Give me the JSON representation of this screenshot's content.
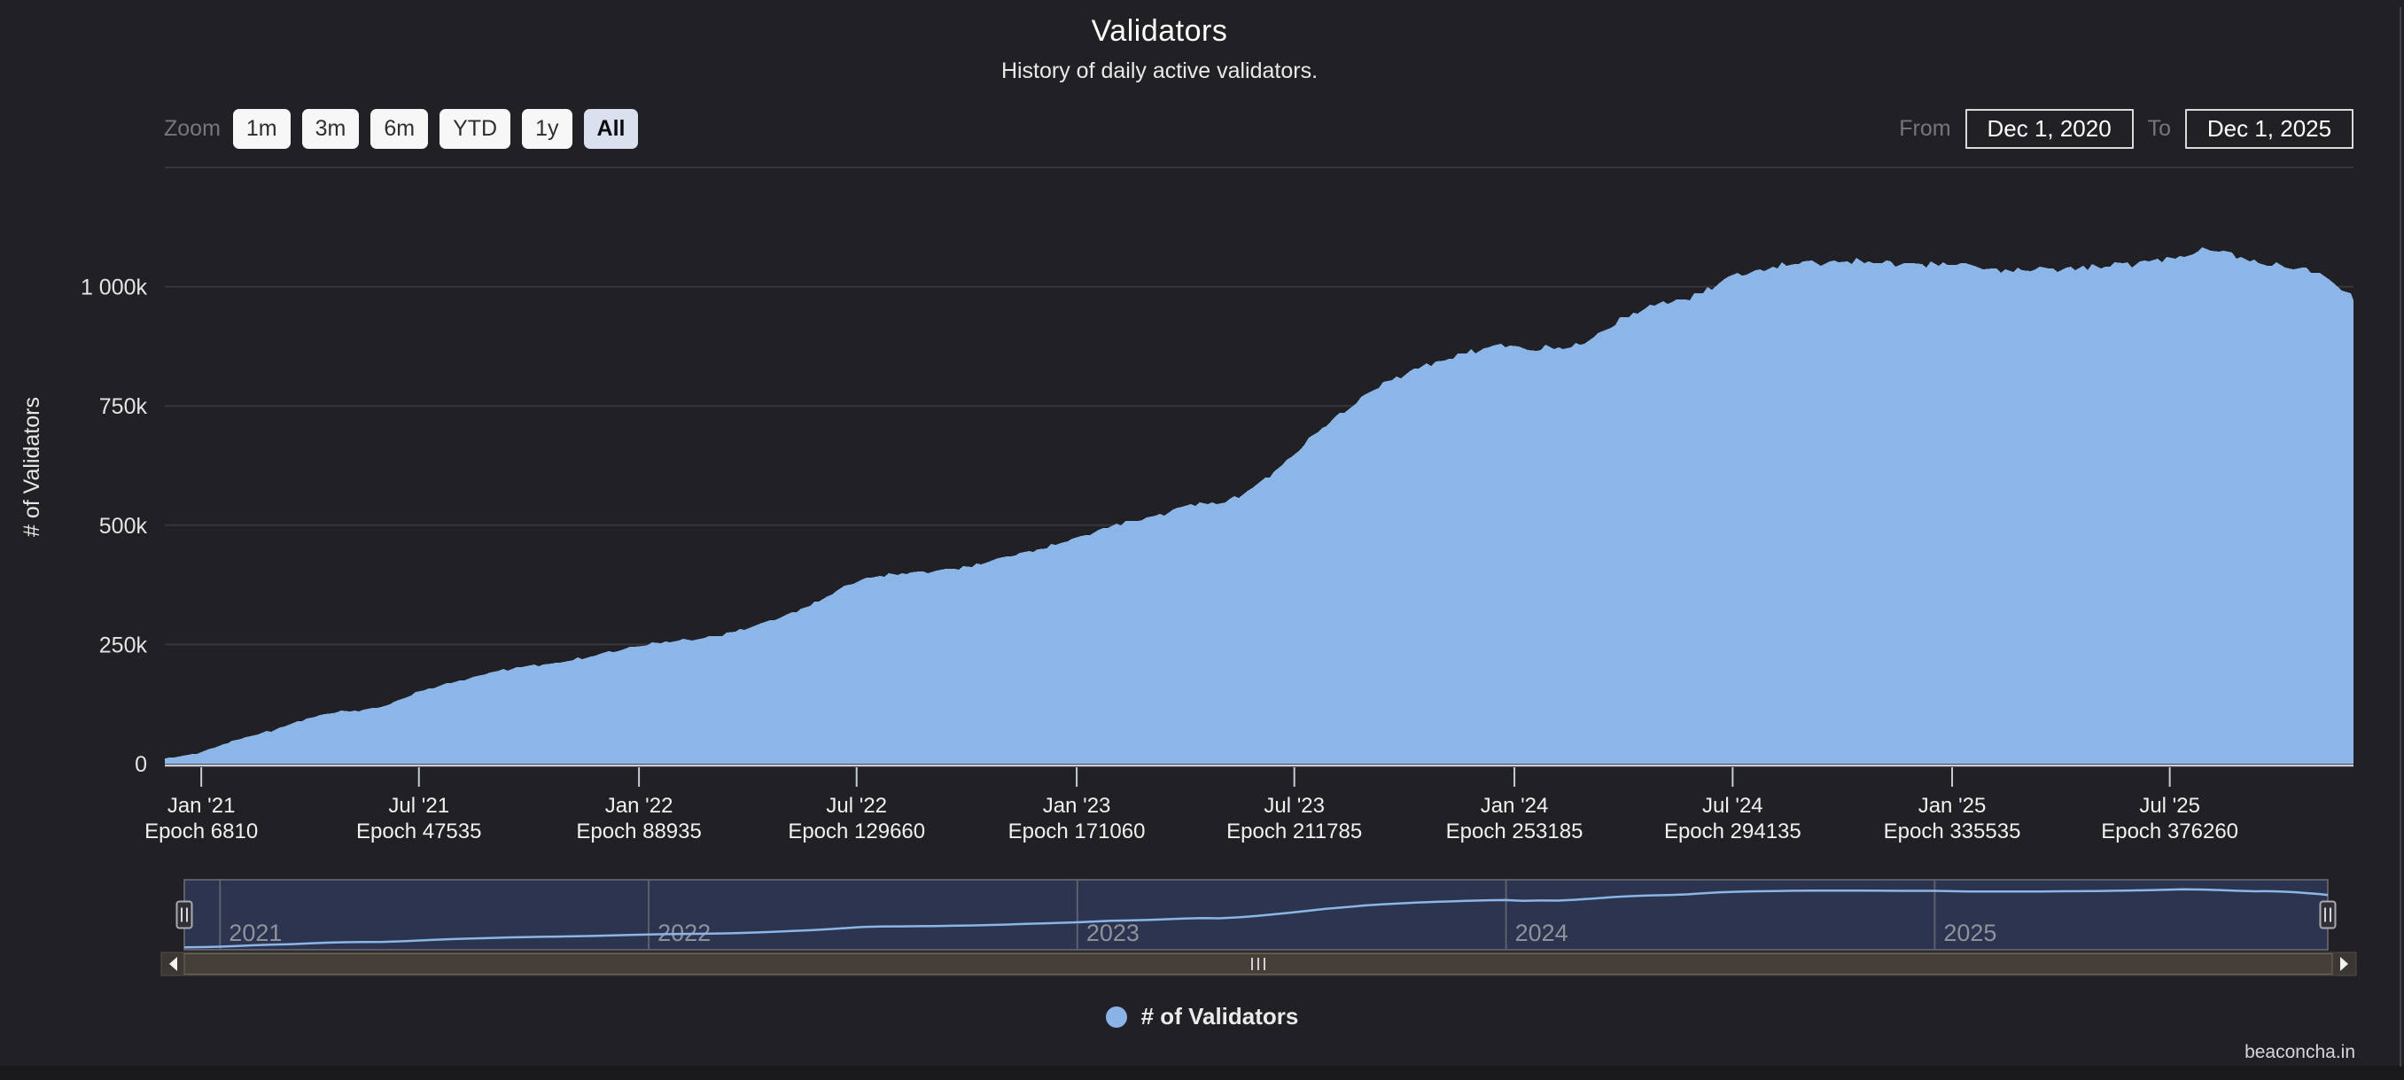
{
  "header": {
    "title": "Validators",
    "subtitle": "History of daily active validators."
  },
  "toolbar": {
    "zoom_label": "Zoom",
    "buttons": [
      {
        "label": "1m",
        "selected": false
      },
      {
        "label": "3m",
        "selected": false
      },
      {
        "label": "6m",
        "selected": false
      },
      {
        "label": "YTD",
        "selected": false
      },
      {
        "label": "1y",
        "selected": false
      },
      {
        "label": "All",
        "selected": true
      }
    ],
    "from_label": "From",
    "from_value": "Dec 1, 2020",
    "to_label": "To",
    "to_value": "Dec 1, 2025"
  },
  "legend": {
    "label": "# of Validators",
    "marker_color": "#8ab4e8"
  },
  "footer": {
    "brand": "beaconcha.in"
  },
  "colors": {
    "background": "#212125",
    "area_fill": "#8cb5e8",
    "gridline": "#3a353d",
    "axis_line": "#c9ced8",
    "navigator_mask": "#2c3450",
    "navigator_outline": "#6f6f74",
    "scrollbar_track": "#3d3733",
    "scrollbar_thumb": "#453e39"
  },
  "chart_data": {
    "type": "area",
    "title": "Validators",
    "subtitle": "History of daily active validators.",
    "x_range": [
      "Dec 1, 2020",
      "Dec 1, 2025"
    ],
    "ylabel": "# of Validators",
    "ylim_validators": [
      0,
      1250000
    ],
    "grid": true,
    "legend_position": "bottom",
    "series_name": "# of Validators",
    "series_color": "#8cb5e8",
    "units": "values in thousands of validators, x in decimal years",
    "yticks": [
      {
        "value": 1000,
        "label": "1 000k"
      },
      {
        "value": 750,
        "label": "750k"
      },
      {
        "value": 500,
        "label": "500k"
      },
      {
        "value": 250,
        "label": "250k"
      },
      {
        "value": 0,
        "label": "0"
      }
    ],
    "xticks": [
      {
        "year": 2021.0,
        "label": "Jan '21",
        "epoch": "Epoch 6810"
      },
      {
        "year": 2021.4972,
        "label": "Jul '21",
        "epoch": "Epoch 47535"
      },
      {
        "year": 2022.0,
        "label": "Jan '22",
        "epoch": "Epoch 88935"
      },
      {
        "year": 2022.4972,
        "label": "Jul '22",
        "epoch": "Epoch 129660"
      },
      {
        "year": 2023.0,
        "label": "Jan '23",
        "epoch": "Epoch 171060"
      },
      {
        "year": 2023.4972,
        "label": "Jul '23",
        "epoch": "Epoch 211785"
      },
      {
        "year": 2024.0,
        "label": "Jan '24",
        "epoch": "Epoch 253185"
      },
      {
        "year": 2024.4986,
        "label": "Jul '24",
        "epoch": "Epoch 294135"
      },
      {
        "year": 2025.0,
        "label": "Jan '25",
        "epoch": "Epoch 335535"
      },
      {
        "year": 2025.4972,
        "label": "Jul '25",
        "epoch": "Epoch 376260"
      }
    ],
    "navigator_years": [
      {
        "year": 2021,
        "label": "2021"
      },
      {
        "year": 2022,
        "label": "2022"
      },
      {
        "year": 2023,
        "label": "2023"
      },
      {
        "year": 2024,
        "label": "2024"
      },
      {
        "year": 2025,
        "label": "2025"
      }
    ],
    "points": [
      [
        2020.917,
        12
      ],
      [
        2020.96,
        16
      ],
      [
        2021.0,
        24
      ],
      [
        2021.04,
        37
      ],
      [
        2021.08,
        50
      ],
      [
        2021.12,
        60
      ],
      [
        2021.17,
        72
      ],
      [
        2021.21,
        85
      ],
      [
        2021.25,
        98
      ],
      [
        2021.29,
        106
      ],
      [
        2021.33,
        109
      ],
      [
        2021.38,
        113
      ],
      [
        2021.42,
        122
      ],
      [
        2021.46,
        136
      ],
      [
        2021.5,
        151
      ],
      [
        2021.54,
        162
      ],
      [
        2021.58,
        172
      ],
      [
        2021.63,
        183
      ],
      [
        2021.67,
        193
      ],
      [
        2021.71,
        200
      ],
      [
        2021.75,
        205
      ],
      [
        2021.79,
        209
      ],
      [
        2021.83,
        215
      ],
      [
        2021.88,
        222
      ],
      [
        2021.92,
        232
      ],
      [
        2021.96,
        240
      ],
      [
        2022.0,
        247
      ],
      [
        2022.04,
        253
      ],
      [
        2022.08,
        258
      ],
      [
        2022.13,
        262
      ],
      [
        2022.17,
        266
      ],
      [
        2022.21,
        274
      ],
      [
        2022.25,
        285
      ],
      [
        2022.29,
        296
      ],
      [
        2022.33,
        310
      ],
      [
        2022.38,
        327
      ],
      [
        2022.42,
        345
      ],
      [
        2022.46,
        366
      ],
      [
        2022.5,
        385
      ],
      [
        2022.54,
        393
      ],
      [
        2022.58,
        397
      ],
      [
        2022.63,
        400
      ],
      [
        2022.67,
        404
      ],
      [
        2022.71,
        408
      ],
      [
        2022.75,
        413
      ],
      [
        2022.79,
        421
      ],
      [
        2022.83,
        430
      ],
      [
        2022.88,
        442
      ],
      [
        2022.92,
        452
      ],
      [
        2022.96,
        462
      ],
      [
        2023.0,
        471
      ],
      [
        2023.04,
        486
      ],
      [
        2023.08,
        500
      ],
      [
        2023.13,
        508
      ],
      [
        2023.17,
        515
      ],
      [
        2023.21,
        528
      ],
      [
        2023.25,
        542
      ],
      [
        2023.29,
        548
      ],
      [
        2023.33,
        545
      ],
      [
        2023.38,
        565
      ],
      [
        2023.42,
        590
      ],
      [
        2023.46,
        620
      ],
      [
        2023.5,
        651
      ],
      [
        2023.54,
        685
      ],
      [
        2023.58,
        720
      ],
      [
        2023.63,
        752
      ],
      [
        2023.67,
        780
      ],
      [
        2023.71,
        800
      ],
      [
        2023.75,
        818
      ],
      [
        2023.79,
        832
      ],
      [
        2023.83,
        845
      ],
      [
        2023.88,
        858
      ],
      [
        2023.92,
        868
      ],
      [
        2023.96,
        876
      ],
      [
        2024.0,
        880
      ],
      [
        2024.02,
        872
      ],
      [
        2024.04,
        866
      ],
      [
        2024.08,
        872
      ],
      [
        2024.12,
        870
      ],
      [
        2024.17,
        890
      ],
      [
        2024.21,
        910
      ],
      [
        2024.25,
        935
      ],
      [
        2024.29,
        952
      ],
      [
        2024.33,
        962
      ],
      [
        2024.38,
        972
      ],
      [
        2024.42,
        983
      ],
      [
        2024.46,
        1003
      ],
      [
        2024.5,
        1022
      ],
      [
        2024.54,
        1032
      ],
      [
        2024.58,
        1040
      ],
      [
        2024.63,
        1046
      ],
      [
        2024.67,
        1050
      ],
      [
        2024.71,
        1052
      ],
      [
        2024.75,
        1054
      ],
      [
        2024.79,
        1053
      ],
      [
        2024.83,
        1052
      ],
      [
        2024.88,
        1050
      ],
      [
        2024.92,
        1048
      ],
      [
        2024.96,
        1048
      ],
      [
        2025.0,
        1048
      ],
      [
        2025.04,
        1042
      ],
      [
        2025.08,
        1038
      ],
      [
        2025.13,
        1036
      ],
      [
        2025.17,
        1035
      ],
      [
        2025.21,
        1036
      ],
      [
        2025.25,
        1038
      ],
      [
        2025.29,
        1040
      ],
      [
        2025.33,
        1042
      ],
      [
        2025.38,
        1046
      ],
      [
        2025.42,
        1050
      ],
      [
        2025.46,
        1055
      ],
      [
        2025.5,
        1061
      ],
      [
        2025.54,
        1068
      ],
      [
        2025.58,
        1077
      ],
      [
        2025.6,
        1074
      ],
      [
        2025.63,
        1072
      ],
      [
        2025.67,
        1060
      ],
      [
        2025.71,
        1048
      ],
      [
        2025.75,
        1040
      ],
      [
        2025.77,
        1042
      ],
      [
        2025.79,
        1041
      ],
      [
        2025.83,
        1030
      ],
      [
        2025.85,
        1018
      ],
      [
        2025.88,
        1000
      ],
      [
        2025.9,
        988
      ],
      [
        2025.917,
        972
      ]
    ]
  }
}
